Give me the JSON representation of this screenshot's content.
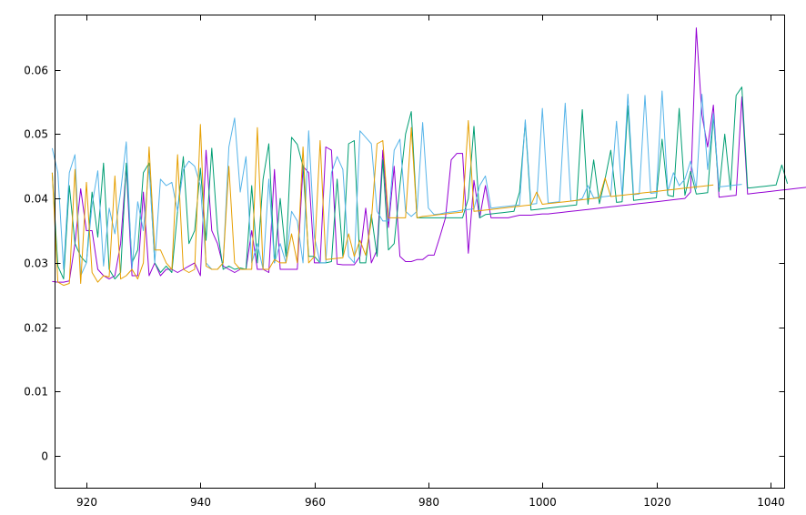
{
  "chart_data": {
    "type": "line",
    "title": "",
    "xlabel": "",
    "ylabel": "",
    "xlim": [
      914.5,
      1042.5
    ],
    "ylim": [
      -0.005,
      0.0685
    ],
    "x_ticks": [
      920,
      940,
      960,
      980,
      1000,
      1020,
      1040
    ],
    "y_ticks": [
      0,
      0.01,
      0.02,
      0.03,
      0.04,
      0.05,
      0.06
    ],
    "x_tick_labels": [
      "920",
      "940",
      "960",
      "980",
      "1000",
      "1020",
      "1040"
    ],
    "y_tick_labels": [
      "0",
      "0.01",
      "0.02",
      "0.03",
      "0.04",
      "0.05",
      "0.06"
    ],
    "grid": false,
    "legend": "none",
    "x_start": 914,
    "x_step": 1,
    "series": [
      {
        "color": "#9400d3",
        "values": [
          0.0271,
          0.027,
          0.027,
          0.0272,
          0.033,
          0.0415,
          0.035,
          0.035,
          0.029,
          0.028,
          0.0275,
          0.028,
          0.033,
          0.045,
          0.028,
          0.028,
          0.041,
          0.028,
          0.03,
          0.028,
          0.029,
          0.029,
          0.0285,
          0.029,
          0.0295,
          0.03,
          0.028,
          0.0475,
          0.035,
          0.033,
          0.0295,
          0.029,
          0.0285,
          0.029,
          0.029,
          0.035,
          0.029,
          0.029,
          0.0285,
          0.0445,
          0.029,
          0.029,
          0.029,
          0.029,
          0.045,
          0.044,
          0.03,
          0.03,
          0.048,
          0.0475,
          0.0298,
          0.0297,
          0.0297,
          0.0297,
          0.031,
          0.0385,
          0.03,
          0.032,
          0.0475,
          0.0355,
          0.045,
          0.031,
          0.0302,
          0.0302,
          0.0305,
          0.0305,
          0.0312,
          0.0312,
          0.034,
          0.037,
          0.046,
          0.047,
          0.047,
          0.0315,
          0.0428,
          0.037,
          0.042,
          0.037,
          0.037,
          0.037,
          0.037,
          0.0372,
          0.0374,
          0.0374,
          0.0374,
          0.0375,
          0.0376,
          0.0376,
          0.0377,
          0.0378,
          0.0379,
          0.038,
          0.0381,
          0.0382,
          0.0383,
          0.0384,
          0.0385,
          0.0386,
          0.0387,
          0.0388,
          0.0389,
          0.039,
          0.0391,
          0.0392,
          0.0393,
          0.0394,
          0.0395,
          0.0396,
          0.0397,
          0.0398,
          0.0399,
          0.04,
          0.041,
          0.0665,
          0.053,
          0.048,
          0.0545,
          0.0402,
          0.0403,
          0.0404,
          0.0405,
          0.0558,
          0.0407,
          0.0408,
          0.0409,
          0.041,
          0.0411,
          0.0412,
          0.0413,
          0.0414,
          0.0415,
          0.0416,
          0.0417,
          0.0418,
          0.0433,
          0.042,
          0.0421,
          0.0422,
          0.0423,
          0.0424
        ]
      },
      {
        "color": "#009e73",
        "values": [
          0.044,
          0.0295,
          0.0275,
          0.042,
          0.033,
          0.031,
          0.03,
          0.041,
          0.034,
          0.0455,
          0.029,
          0.0275,
          0.0285,
          0.0455,
          0.03,
          0.032,
          0.044,
          0.0455,
          0.03,
          0.0285,
          0.0295,
          0.0285,
          0.038,
          0.0465,
          0.033,
          0.035,
          0.0447,
          0.0335,
          0.0478,
          0.035,
          0.029,
          0.0295,
          0.029,
          0.0292,
          0.029,
          0.042,
          0.03,
          0.043,
          0.0485,
          0.03,
          0.04,
          0.031,
          0.0495,
          0.0484,
          0.045,
          0.031,
          0.031,
          0.03,
          0.03,
          0.0302,
          0.043,
          0.031,
          0.0485,
          0.049,
          0.03,
          0.03,
          0.0375,
          0.031,
          0.046,
          0.032,
          0.033,
          0.042,
          0.05,
          0.0535,
          0.037,
          0.037,
          0.037,
          0.037,
          0.037,
          0.037,
          0.037,
          0.037,
          0.037,
          0.04,
          0.0512,
          0.037,
          0.0375,
          0.0376,
          0.0377,
          0.0378,
          0.0379,
          0.038,
          0.041,
          0.0518,
          0.0382,
          0.0383,
          0.0384,
          0.0385,
          0.0386,
          0.0387,
          0.0388,
          0.0389,
          0.039,
          0.0538,
          0.0391,
          0.046,
          0.0392,
          0.043,
          0.0475,
          0.0394,
          0.0395,
          0.0544,
          0.0397,
          0.0398,
          0.0399,
          0.04,
          0.0401,
          0.0492,
          0.0405,
          0.0403,
          0.054,
          0.0405,
          0.0442,
          0.0407,
          0.0408,
          0.0409,
          0.0528,
          0.0411,
          0.05,
          0.0413,
          0.056,
          0.0573,
          0.0416,
          0.0417,
          0.0418,
          0.0419,
          0.042,
          0.0421,
          0.0452,
          0.0423
        ]
      },
      {
        "color": "#56b4e9",
        "values": [
          0.0478,
          0.044,
          0.029,
          0.044,
          0.0468,
          0.028,
          0.03,
          0.039,
          0.0443,
          0.0295,
          0.0385,
          0.0345,
          0.041,
          0.0488,
          0.029,
          0.0395,
          0.035,
          0.045,
          0.03,
          0.043,
          0.042,
          0.0425,
          0.038,
          0.0445,
          0.0458,
          0.045,
          0.042,
          0.03,
          0.029,
          0.029,
          0.03,
          0.048,
          0.0525,
          0.041,
          0.0465,
          0.03,
          0.033,
          0.029,
          0.043,
          0.03,
          0.033,
          0.03,
          0.038,
          0.0365,
          0.03,
          0.0505,
          0.034,
          0.03,
          0.03,
          0.044,
          0.0465,
          0.0445,
          0.031,
          0.03,
          0.0505,
          0.0495,
          0.0485,
          0.038,
          0.0365,
          0.0365,
          0.0475,
          0.0492,
          0.038,
          0.0372,
          0.038,
          0.0518,
          0.0385,
          0.0375,
          0.0376,
          0.0378,
          0.0379,
          0.038,
          0.0382,
          0.0383,
          0.0384,
          0.042,
          0.0435,
          0.0385,
          0.0386,
          0.0387,
          0.0388,
          0.0389,
          0.039,
          0.0522,
          0.0391,
          0.0392,
          0.054,
          0.0393,
          0.0394,
          0.0395,
          0.0548,
          0.0396,
          0.0397,
          0.04,
          0.042,
          0.0401,
          0.0402,
          0.0403,
          0.0404,
          0.052,
          0.0405,
          0.0562,
          0.0406,
          0.0407,
          0.056,
          0.0408,
          0.0409,
          0.0567,
          0.0411,
          0.044,
          0.042,
          0.043,
          0.0458,
          0.0415,
          0.0562,
          0.0445,
          0.0532,
          0.0418,
          0.0419,
          0.042,
          0.0421,
          0.0422
        ]
      },
      {
        "color": "#e69f00",
        "values": [
          0.044,
          0.027,
          0.0265,
          0.0268,
          0.0445,
          0.0268,
          0.0425,
          0.0285,
          0.027,
          0.028,
          0.0278,
          0.0435,
          0.0275,
          0.028,
          0.029,
          0.0275,
          0.03,
          0.048,
          0.032,
          0.032,
          0.03,
          0.029,
          0.0468,
          0.029,
          0.0285,
          0.029,
          0.0515,
          0.0295,
          0.029,
          0.029,
          0.03,
          0.045,
          0.03,
          0.029,
          0.029,
          0.029,
          0.051,
          0.029,
          0.029,
          0.0305,
          0.03,
          0.03,
          0.0345,
          0.03,
          0.048,
          0.03,
          0.031,
          0.049,
          0.0305,
          0.0306,
          0.0307,
          0.0308,
          0.0345,
          0.031,
          0.0335,
          0.0312,
          0.0365,
          0.0485,
          0.049,
          0.037,
          0.037,
          0.037,
          0.037,
          0.051,
          0.037,
          0.0372,
          0.0373,
          0.0374,
          0.0375,
          0.0376,
          0.0377,
          0.0378,
          0.0379,
          0.0521,
          0.038,
          0.0381,
          0.0382,
          0.0383,
          0.0384,
          0.0385,
          0.0386,
          0.0387,
          0.0388,
          0.0389,
          0.039,
          0.041,
          0.0391,
          0.0392,
          0.0393,
          0.0394,
          0.0395,
          0.0396,
          0.0397,
          0.0398,
          0.0399,
          0.04,
          0.0401,
          0.0432,
          0.0403,
          0.0404,
          0.0405,
          0.0406,
          0.0407,
          0.0408,
          0.0409,
          0.041,
          0.0411,
          0.0412,
          0.0413,
          0.0414,
          0.0415,
          0.0416,
          0.0417,
          0.0418,
          0.0419,
          0.042,
          0.0421
        ]
      }
    ]
  }
}
